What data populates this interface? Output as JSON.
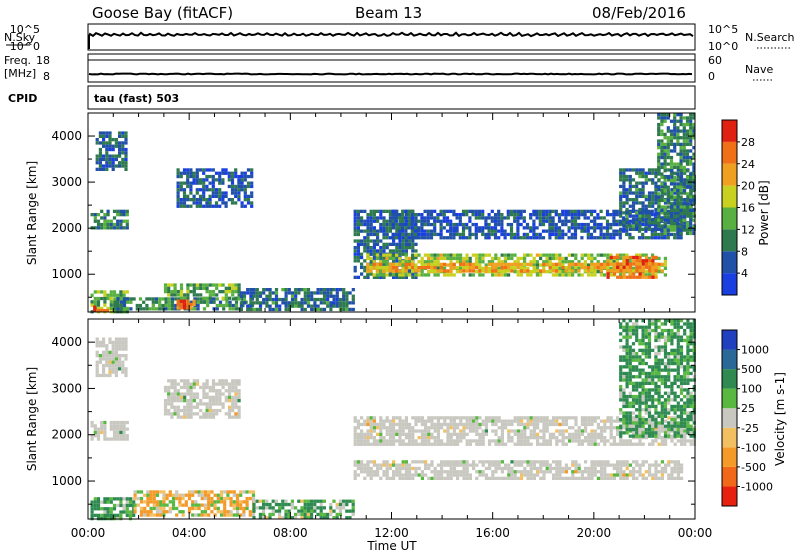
{
  "header": {
    "station": "Goose Bay (fitACF)",
    "beam": "Beam 13",
    "date": "08/Feb/2016"
  },
  "side_labels": {
    "nsky": "N.Sky",
    "nsearch": "N.Search",
    "freq_line1": "Freq.",
    "freq_line2": "[MHz]",
    "nave": "Nave",
    "cpid": "CPID",
    "cpid_value": "tau (fast) 503"
  },
  "noise_panel": {
    "left_ticks": [
      "10^5",
      "10^0"
    ],
    "right_ticks": [
      "10^5",
      "10^0"
    ]
  },
  "freq_panel": {
    "left_ticks": [
      "18",
      "8"
    ],
    "right_ticks": [
      "60",
      "0"
    ]
  },
  "colors": {
    "power": [
      "#1a3fe0",
      "#2050a8",
      "#2e7a4e",
      "#58b040",
      "#c8d020",
      "#f0a020",
      "#f07018",
      "#e02010"
    ],
    "velocity": [
      "#e82010",
      "#f06818",
      "#f49a28",
      "#f2c060",
      "#c8c8c0",
      "#58b840",
      "#2e8a50",
      "#2a6898",
      "#2040c0"
    ],
    "ground": "#c8c8c0"
  },
  "chart_data": [
    {
      "type": "heatmap",
      "name": "power",
      "xlabel": "",
      "ylabel": "Slant Range [km]",
      "colorbar_label": "Power [dB]",
      "colorbar_ticks": [
        "4",
        "8",
        "12",
        "16",
        "20",
        "24",
        "28"
      ],
      "clim": [
        0,
        32
      ],
      "xlim": [
        0,
        24
      ],
      "ylim": [
        180,
        4500
      ],
      "yticks": [
        "1000",
        "2000",
        "3000",
        "4000"
      ],
      "regions": [
        {
          "t": [
            0.1,
            1.5
          ],
          "r": [
            2000,
            2400
          ],
          "p": 10
        },
        {
          "t": [
            0.3,
            1.5
          ],
          "r": [
            3300,
            4100
          ],
          "p": 7
        },
        {
          "t": [
            0.1,
            1.5
          ],
          "r": [
            180,
            650
          ],
          "p": 14
        },
        {
          "t": [
            0.2,
            0.9
          ],
          "r": [
            180,
            320
          ],
          "p": 27
        },
        {
          "t": [
            1.0,
            6.5
          ],
          "r": [
            220,
            500
          ],
          "p": 10
        },
        {
          "t": [
            3.0,
            6.0
          ],
          "r": [
            450,
            800
          ],
          "p": 13
        },
        {
          "t": [
            3.5,
            4.2
          ],
          "r": [
            300,
            450
          ],
          "p": 27
        },
        {
          "t": [
            3.5,
            6.5
          ],
          "r": [
            2500,
            3300
          ],
          "p": 6
        },
        {
          "t": [
            6.0,
            10.5
          ],
          "r": [
            200,
            700
          ],
          "p": 8
        },
        {
          "t": [
            10.5,
            13.0
          ],
          "r": [
            900,
            2400
          ],
          "p": 7
        },
        {
          "t": [
            11.0,
            22.8
          ],
          "r": [
            950,
            1450
          ],
          "p": 16
        },
        {
          "t": [
            11.0,
            22.8
          ],
          "r": [
            1050,
            1250
          ],
          "p": 22
        },
        {
          "t": [
            12.0,
            23.5
          ],
          "r": [
            1800,
            2400
          ],
          "p": 6
        },
        {
          "t": [
            20.5,
            22.5
          ],
          "r": [
            900,
            1400
          ],
          "p": 25
        },
        {
          "t": [
            21.0,
            24.0
          ],
          "r": [
            2000,
            3300
          ],
          "p": 8
        },
        {
          "t": [
            22.5,
            24.0
          ],
          "r": [
            1900,
            4500
          ],
          "p": 10
        }
      ]
    },
    {
      "type": "heatmap",
      "name": "velocity",
      "xlabel": "Time UT",
      "ylabel": "Slant Range [km]",
      "colorbar_label": "Velocity [m s-1]",
      "colorbar_ticks": [
        "-1000",
        "-500",
        "-100",
        "-25",
        "25",
        "100",
        "500",
        "1000"
      ],
      "xlim": [
        0,
        24
      ],
      "ylim": [
        180,
        4500
      ],
      "yticks": [
        "1000",
        "2000",
        "3000",
        "4000"
      ],
      "xticks": [
        "00:00",
        "04:00",
        "08:00",
        "12:00",
        "16:00",
        "20:00",
        "00:00"
      ],
      "regions": [
        {
          "t": [
            0.1,
            1.5
          ],
          "r": [
            1900,
            2300
          ],
          "v": 0
        },
        {
          "t": [
            0.3,
            1.5
          ],
          "r": [
            3300,
            4100
          ],
          "v": 0
        },
        {
          "t": [
            0.1,
            1.8
          ],
          "r": [
            200,
            650
          ],
          "v": 150
        },
        {
          "t": [
            1.8,
            6.5
          ],
          "r": [
            250,
            800
          ],
          "v": -80
        },
        {
          "t": [
            3.0,
            6.0
          ],
          "r": [
            2400,
            3200
          ],
          "v": 0
        },
        {
          "t": [
            6.5,
            10.5
          ],
          "r": [
            200,
            600
          ],
          "v": 100
        },
        {
          "t": [
            10.5,
            23.5
          ],
          "r": [
            1050,
            1450
          ],
          "v": 0
        },
        {
          "t": [
            10.5,
            24.0
          ],
          "r": [
            1800,
            2400
          ],
          "v": 0
        },
        {
          "t": [
            21.0,
            24.0
          ],
          "r": [
            2000,
            4500
          ],
          "v": 150
        }
      ]
    }
  ]
}
